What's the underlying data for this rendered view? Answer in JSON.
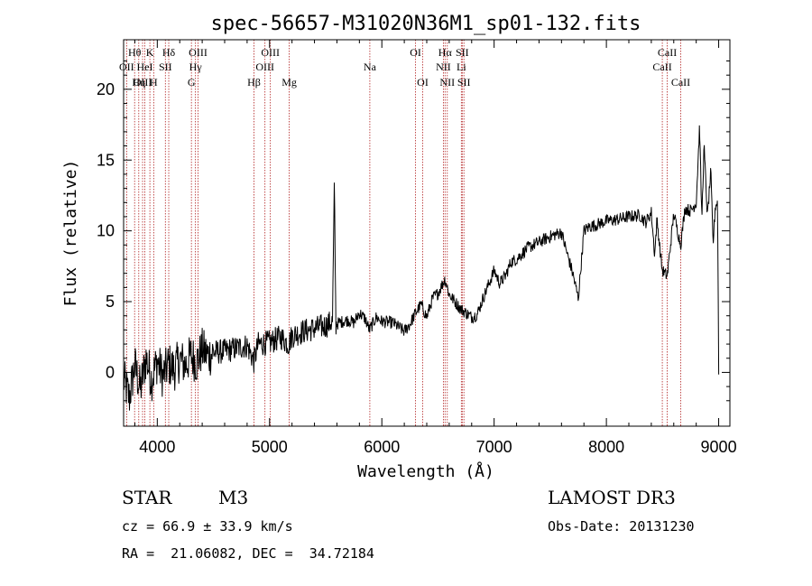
{
  "chart_data": {
    "type": "line",
    "title": "spec-56657-M31020N36M1_sp01-132.fits",
    "xlabel": "Wavelength (Å)",
    "ylabel": "Flux (relative)",
    "xlim": [
      3700,
      9100
    ],
    "ylim": [
      -3.8,
      23.5
    ],
    "xticks": [
      4000,
      5000,
      6000,
      7000,
      8000,
      9000
    ],
    "yticks": [
      0,
      5,
      10,
      15,
      20
    ],
    "xtick_labels": [
      "4000",
      "5000",
      "6000",
      "7000",
      "8000",
      "9000"
    ],
    "ytick_labels": [
      "0",
      "5",
      "10",
      "15",
      "20"
    ],
    "series": [
      {
        "name": "spectrum",
        "x": [
          3700,
          3750,
          3800,
          3850,
          3900,
          3950,
          4000,
          4050,
          4100,
          4150,
          4200,
          4250,
          4300,
          4350,
          4400,
          4450,
          4500,
          4600,
          4700,
          4800,
          4860,
          4900,
          5000,
          5100,
          5170,
          5200,
          5300,
          5400,
          5500,
          5560,
          5577,
          5590,
          5650,
          5700,
          5750,
          5800,
          5850,
          5890,
          5950,
          6000,
          6100,
          6200,
          6250,
          6300,
          6350,
          6400,
          6450,
          6500,
          6563,
          6600,
          6650,
          6700,
          6750,
          6800,
          6850,
          6900,
          6950,
          7000,
          7050,
          7100,
          7150,
          7200,
          7300,
          7400,
          7500,
          7600,
          7650,
          7700,
          7750,
          7800,
          7850,
          7900,
          8000,
          8100,
          8200,
          8300,
          8350,
          8400,
          8430,
          8450,
          8498,
          8542,
          8600,
          8662,
          8700,
          8750,
          8800,
          8830,
          8850,
          8870,
          8900,
          8930,
          8950,
          8970,
          8990,
          9000
        ],
        "y": [
          -0.5,
          -1.8,
          0.5,
          -1.2,
          1.0,
          -0.5,
          0.8,
          -0.3,
          0.6,
          0.2,
          0.9,
          0.5,
          1.2,
          0.7,
          1.6,
          1.2,
          1.4,
          1.5,
          1.7,
          1.9,
          0.8,
          2.0,
          2.1,
          2.5,
          2.0,
          2.6,
          2.9,
          3.1,
          3.3,
          3.6,
          13.2,
          3.4,
          3.6,
          3.7,
          3.5,
          4.2,
          3.8,
          3.0,
          3.9,
          3.6,
          3.5,
          2.9,
          3.4,
          4.2,
          4.8,
          3.9,
          5.2,
          5.6,
          6.6,
          5.5,
          5.0,
          4.5,
          4.2,
          3.9,
          4.1,
          5.2,
          6.2,
          7.2,
          6.3,
          6.8,
          7.8,
          8.0,
          8.8,
          9.2,
          9.6,
          9.9,
          8.4,
          7.0,
          5.2,
          10.0,
          10.3,
          10.4,
          10.7,
          10.8,
          11.0,
          11.1,
          10.6,
          11.3,
          8.3,
          10.8,
          7.2,
          6.8,
          11.2,
          9.0,
          11.6,
          11.4,
          12.0,
          17.5,
          10.8,
          16.0,
          11.0,
          14.2,
          9.0,
          11.8,
          12.0,
          0.0
        ]
      }
    ],
    "emission_lines": [
      {
        "label": "Hθ",
        "x": 3798,
        "row": 1
      },
      {
        "label": "OII",
        "x": 3727,
        "row": 2
      },
      {
        "label": "OIII",
        "x": 3869,
        "row": 3
      },
      {
        "label": "K",
        "x": 3934,
        "row": 1
      },
      {
        "label": "HeI",
        "x": 3889,
        "row": 2
      },
      {
        "label": "Hη",
        "x": 3835,
        "row": 3
      },
      {
        "label": "SII",
        "x": 4072,
        "row": 2
      },
      {
        "label": "H",
        "x": 3968,
        "row": 3
      },
      {
        "label": "Hδ",
        "x": 4102,
        "row": 1
      },
      {
        "label": "OIII",
        "x": 4363,
        "row": 1
      },
      {
        "label": "Hγ",
        "x": 4340,
        "row": 2
      },
      {
        "label": "G",
        "x": 4304,
        "row": 3
      },
      {
        "label": "Hβ",
        "x": 4861,
        "row": 3
      },
      {
        "label": "OIII",
        "x": 5007,
        "row": 1
      },
      {
        "label": "OIII",
        "x": 4959,
        "row": 2
      },
      {
        "label": "Mg",
        "x": 5175,
        "row": 3
      },
      {
        "label": "Na",
        "x": 5893,
        "row": 2
      },
      {
        "label": "OI",
        "x": 6300,
        "row": 1
      },
      {
        "label": "OI",
        "x": 6364,
        "row": 3
      },
      {
        "label": "Hα",
        "x": 6563,
        "row": 1
      },
      {
        "label": "SII",
        "x": 6716,
        "row": 1
      },
      {
        "label": "NII",
        "x": 6548,
        "row": 2
      },
      {
        "label": "Li",
        "x": 6708,
        "row": 2
      },
      {
        "label": "NII",
        "x": 6583,
        "row": 3
      },
      {
        "label": "SII",
        "x": 6731,
        "row": 3
      },
      {
        "label": "CaII",
        "x": 8542,
        "row": 1
      },
      {
        "label": "CaII",
        "x": 8498,
        "row": 2
      },
      {
        "label": "CaII",
        "x": 8662,
        "row": 3
      }
    ]
  },
  "footer": {
    "class_label": "STAR",
    "subclass": "M3",
    "survey": "LAMOST DR3",
    "cz_text": "cz = 66.9 ± 33.9 km/s",
    "obs_date": "Obs-Date: 20131230",
    "coords": "RA =  21.06082, DEC =  34.72184"
  }
}
